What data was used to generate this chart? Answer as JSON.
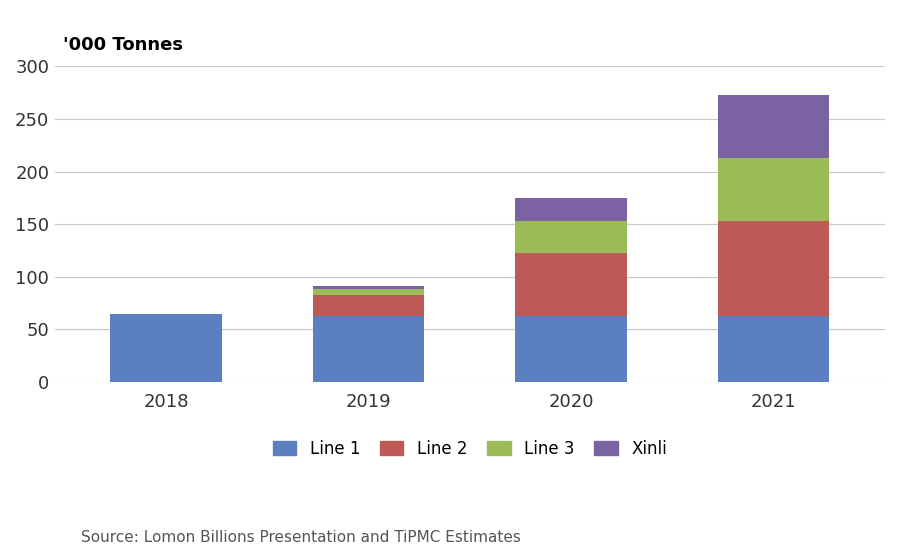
{
  "categories": [
    "2018",
    "2019",
    "2020",
    "2021"
  ],
  "series": {
    "Line 1": [
      65,
      63,
      63,
      63
    ],
    "Line 2": [
      0,
      20,
      60,
      90
    ],
    "Line 3": [
      0,
      5,
      30,
      60
    ],
    "Xinli": [
      0,
      3,
      22,
      60
    ]
  },
  "colors": {
    "Line 1": "#5B7FC1",
    "Line 2": "#BE5A55",
    "Line 3": "#9BBB59",
    "Xinli": "#7B62A3"
  },
  "ylabel": "'000 Tonnes",
  "ylim": [
    0,
    300
  ],
  "yticks": [
    0,
    50,
    100,
    150,
    200,
    250,
    300
  ],
  "source_text": "Source: Lomon Billions Presentation and TiPMC Estimates",
  "background_color": "#ffffff",
  "grid_color": "#c8c8c8",
  "bar_width": 0.55,
  "legend_ncol": 4
}
